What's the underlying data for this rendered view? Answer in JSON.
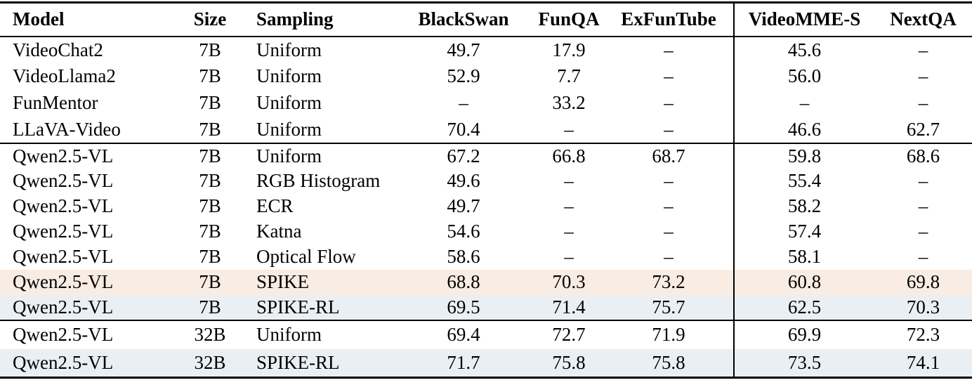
{
  "table": {
    "columns": [
      {
        "key": "model",
        "label": "Model",
        "align": "left"
      },
      {
        "key": "size",
        "label": "Size",
        "align": "center"
      },
      {
        "key": "sampling",
        "label": "Sampling",
        "align": "left"
      },
      {
        "key": "blackswan",
        "label": "BlackSwan",
        "align": "center"
      },
      {
        "key": "funqa",
        "label": "FunQA",
        "align": "center"
      },
      {
        "key": "exfuntube",
        "label": "ExFunTube",
        "align": "center"
      },
      {
        "key": "videomme",
        "label": "VideoMME-S",
        "align": "center"
      },
      {
        "key": "nextqa",
        "label": "NextQA",
        "align": "center"
      }
    ],
    "missing_value_symbol": "–",
    "sections": [
      {
        "name": "baseline-models",
        "rows": [
          {
            "model": "VideoChat2",
            "size": "7B",
            "sampling": "Uniform",
            "blackswan": "49.7",
            "funqa": "17.9",
            "exfuntube": "–",
            "videomme": "45.6",
            "nextqa": "–",
            "highlight": ""
          },
          {
            "model": "VideoLlama2",
            "size": "7B",
            "sampling": "Uniform",
            "blackswan": "52.9",
            "funqa": "7.7",
            "exfuntube": "–",
            "videomme": "56.0",
            "nextqa": "–",
            "highlight": ""
          },
          {
            "model": "FunMentor",
            "size": "7B",
            "sampling": "Uniform",
            "blackswan": "–",
            "funqa": "33.2",
            "exfuntube": "–",
            "videomme": "–",
            "nextqa": "–",
            "highlight": ""
          },
          {
            "model": "LLaVA-Video",
            "size": "7B",
            "sampling": "Uniform",
            "blackswan": "70.4",
            "funqa": "–",
            "exfuntube": "–",
            "videomme": "46.6",
            "nextqa": "62.7",
            "highlight": ""
          }
        ]
      },
      {
        "name": "qwen25vl-7b",
        "rows": [
          {
            "model": "Qwen2.5-VL",
            "size": "7B",
            "sampling": "Uniform",
            "blackswan": "67.2",
            "funqa": "66.8",
            "exfuntube": "68.7",
            "videomme": "59.8",
            "nextqa": "68.6",
            "highlight": ""
          },
          {
            "model": "Qwen2.5-VL",
            "size": "7B",
            "sampling": "RGB Histogram",
            "blackswan": "49.6",
            "funqa": "–",
            "exfuntube": "–",
            "videomme": "55.4",
            "nextqa": "–",
            "highlight": ""
          },
          {
            "model": "Qwen2.5-VL",
            "size": "7B",
            "sampling": "ECR",
            "blackswan": "49.7",
            "funqa": "–",
            "exfuntube": "–",
            "videomme": "58.2",
            "nextqa": "–",
            "highlight": ""
          },
          {
            "model": "Qwen2.5-VL",
            "size": "7B",
            "sampling": "Katna",
            "blackswan": "54.6",
            "funqa": "–",
            "exfuntube": "–",
            "videomme": "57.4",
            "nextqa": "–",
            "highlight": ""
          },
          {
            "model": "Qwen2.5-VL",
            "size": "7B",
            "sampling": "Optical Flow",
            "blackswan": "58.6",
            "funqa": "–",
            "exfuntube": "–",
            "videomme": "58.1",
            "nextqa": "–",
            "highlight": ""
          },
          {
            "model": "Qwen2.5-VL",
            "size": "7B",
            "sampling": "SPIKE",
            "blackswan": "68.8",
            "funqa": "70.3",
            "exfuntube": "73.2",
            "videomme": "60.8",
            "nextqa": "69.8",
            "highlight": "spike"
          },
          {
            "model": "Qwen2.5-VL",
            "size": "7B",
            "sampling": "SPIKE-RL",
            "blackswan": "69.5",
            "funqa": "71.4",
            "exfuntube": "75.7",
            "videomme": "62.5",
            "nextqa": "70.3",
            "highlight": "spike_rl"
          }
        ]
      },
      {
        "name": "qwen25vl-32b",
        "rows": [
          {
            "model": "Qwen2.5-VL",
            "size": "32B",
            "sampling": "Uniform",
            "blackswan": "69.4",
            "funqa": "72.7",
            "exfuntube": "71.9",
            "videomme": "69.9",
            "nextqa": "72.3",
            "highlight": ""
          },
          {
            "model": "Qwen2.5-VL",
            "size": "32B",
            "sampling": "SPIKE-RL",
            "blackswan": "71.7",
            "funqa": "75.8",
            "exfuntube": "75.8",
            "videomme": "73.5",
            "nextqa": "74.1",
            "highlight": "spike_rl"
          }
        ]
      }
    ]
  },
  "colors": {
    "spike_row_highlight": "#f8ece3",
    "spike_rl_row_highlight": "#eaeff3",
    "rule_color": "#000000",
    "text_color": "#000000"
  }
}
